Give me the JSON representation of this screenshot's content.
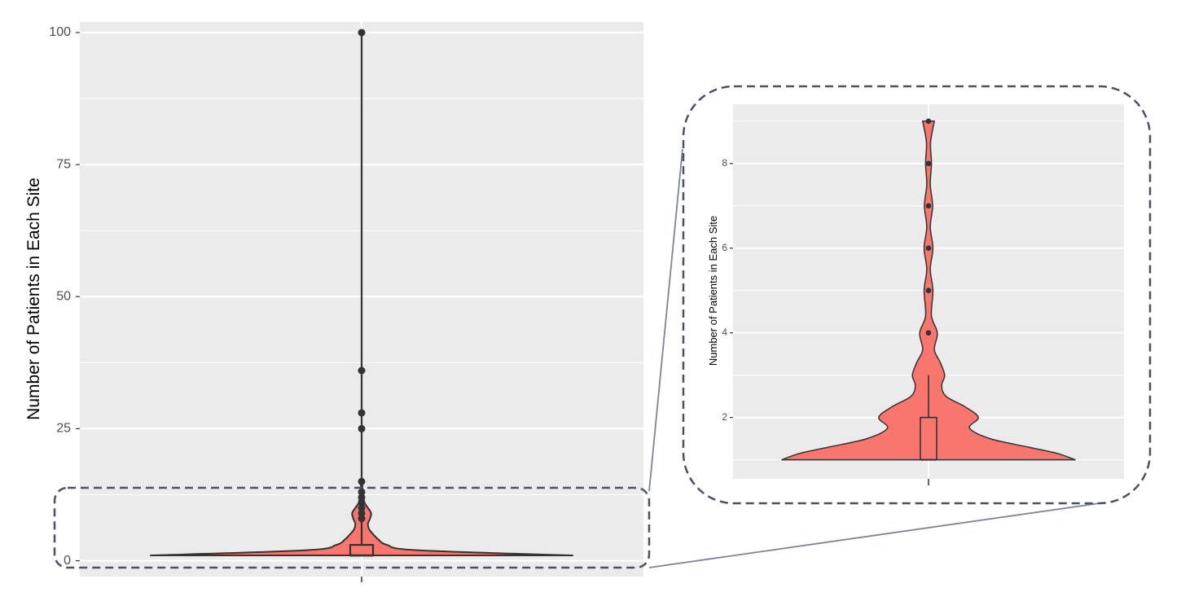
{
  "chart_data": [
    {
      "type": "violin",
      "ylabel": "Number of Patients in Each Site",
      "xlabel": "",
      "ylim": [
        -3,
        102
      ],
      "yticks": [
        0,
        25,
        50,
        75,
        100
      ],
      "ytick_labels": [
        "0",
        "25",
        "50",
        "75",
        "100"
      ],
      "grid": true,
      "violin_fill": "#F8766D",
      "density_profile": [
        {
          "y": 1,
          "rel_width": 1.0
        },
        {
          "y": 2,
          "rel_width": 0.26
        },
        {
          "y": 3,
          "rel_width": 0.12
        },
        {
          "y": 4,
          "rel_width": 0.08
        },
        {
          "y": 5,
          "rel_width": 0.055
        },
        {
          "y": 6,
          "rel_width": 0.035
        },
        {
          "y": 7,
          "rel_width": 0.03
        },
        {
          "y": 8,
          "rel_width": 0.04
        },
        {
          "y": 9,
          "rel_width": 0.045
        },
        {
          "y": 10,
          "rel_width": 0.03
        },
        {
          "y": 11,
          "rel_width": 0.014
        },
        {
          "y": 13,
          "rel_width": 0.005
        },
        {
          "y": 15,
          "rel_width": 0.003
        }
      ],
      "boxplot": {
        "min": 1,
        "q1": 1,
        "median": 1,
        "q3": 3,
        "whisker_high": 7
      },
      "outliers": [
        8,
        9,
        10,
        11,
        12,
        13,
        15,
        25,
        28,
        36,
        100
      ]
    },
    {
      "type": "violin",
      "ylabel": "Number of Patients in Each Site",
      "xlabel": "",
      "ylim": [
        0.55,
        9.4
      ],
      "yticks": [
        2,
        4,
        6,
        8
      ],
      "ytick_labels": [
        "2",
        "4",
        "6",
        "8"
      ],
      "grid": true,
      "violin_fill": "#F8766D",
      "density_profile": [
        {
          "y": 1.0,
          "rel_width": 1.0
        },
        {
          "y": 1.15,
          "rel_width": 0.88
        },
        {
          "y": 1.3,
          "rel_width": 0.68
        },
        {
          "y": 1.5,
          "rel_width": 0.42
        },
        {
          "y": 1.75,
          "rel_width": 0.28
        },
        {
          "y": 2.0,
          "rel_width": 0.34
        },
        {
          "y": 2.25,
          "rel_width": 0.25
        },
        {
          "y": 2.5,
          "rel_width": 0.12
        },
        {
          "y": 2.75,
          "rel_width": 0.09
        },
        {
          "y": 3.0,
          "rel_width": 0.11
        },
        {
          "y": 3.3,
          "rel_width": 0.08
        },
        {
          "y": 3.6,
          "rel_width": 0.04
        },
        {
          "y": 4.0,
          "rel_width": 0.06
        },
        {
          "y": 4.4,
          "rel_width": 0.02
        },
        {
          "y": 5.0,
          "rel_width": 0.03
        },
        {
          "y": 5.5,
          "rel_width": 0.012
        },
        {
          "y": 6.0,
          "rel_width": 0.03
        },
        {
          "y": 6.5,
          "rel_width": 0.012
        },
        {
          "y": 7.0,
          "rel_width": 0.028
        },
        {
          "y": 7.5,
          "rel_width": 0.012
        },
        {
          "y": 8.0,
          "rel_width": 0.02
        },
        {
          "y": 8.5,
          "rel_width": 0.014
        },
        {
          "y": 9.0,
          "rel_width": 0.04
        }
      ],
      "boxplot": {
        "min": 1,
        "q1": 1,
        "median": 1,
        "q3": 2,
        "whisker_high": 3
      },
      "outliers": [
        4,
        5,
        6,
        7,
        8,
        9
      ]
    }
  ]
}
